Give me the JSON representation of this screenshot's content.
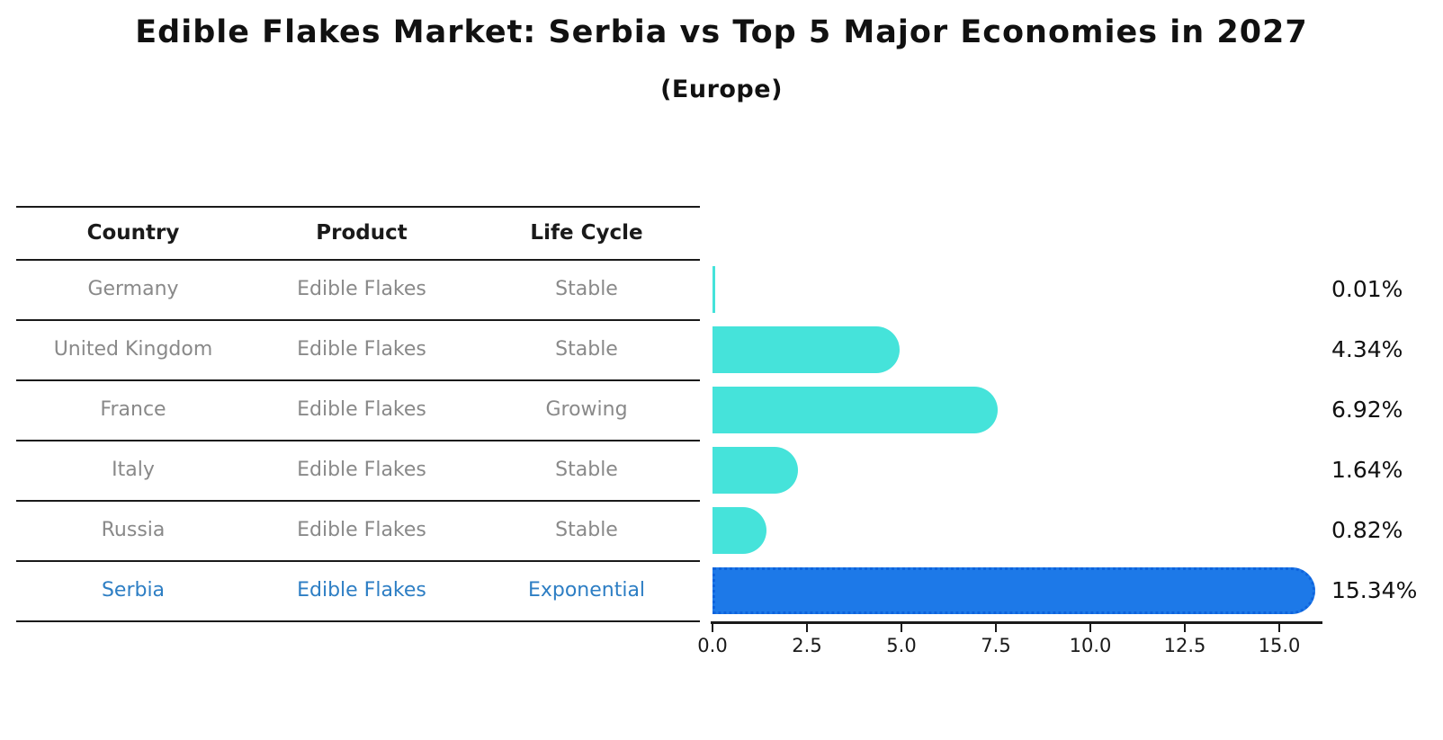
{
  "title": "Edible Flakes Market: Serbia vs Top 5 Major Economies in 2027",
  "subtitle": "(Europe)",
  "table": {
    "headers": [
      "Country",
      "Product",
      "Life Cycle"
    ],
    "rows": [
      {
        "country": "Germany",
        "product": "Edible Flakes",
        "life_cycle": "Stable",
        "value_label": "0.01%"
      },
      {
        "country": "United Kingdom",
        "product": "Edible Flakes",
        "life_cycle": "Stable",
        "value_label": "4.34%"
      },
      {
        "country": "France",
        "product": "Edible Flakes",
        "life_cycle": "Growing",
        "value_label": "6.92%"
      },
      {
        "country": "Italy",
        "product": "Edible Flakes",
        "life_cycle": "Stable",
        "value_label": "1.64%"
      },
      {
        "country": "Russia",
        "product": "Edible Flakes",
        "life_cycle": "Stable",
        "value_label": "0.82%"
      },
      {
        "country": "Serbia",
        "product": "Edible Flakes",
        "life_cycle": "Exponential",
        "value_label": "15.34%"
      }
    ]
  },
  "chart_data": {
    "type": "bar",
    "orientation": "horizontal",
    "title": "Edible Flakes Market: Serbia vs Top 5 Major Economies in 2027",
    "subtitle": "(Europe)",
    "categories": [
      "Germany",
      "United Kingdom",
      "France",
      "Italy",
      "Russia",
      "Serbia"
    ],
    "values": [
      0.01,
      4.34,
      6.92,
      1.64,
      0.82,
      15.34
    ],
    "value_labels": [
      "0.01%",
      "4.34%",
      "6.92%",
      "1.64%",
      "0.82%",
      "15.34%"
    ],
    "highlighted_category": "Serbia",
    "xlabel": "",
    "ylabel": "",
    "xlim": [
      0,
      16.2
    ],
    "xticks": [
      0.0,
      2.5,
      5.0,
      7.5,
      10.0,
      12.5,
      15.0
    ],
    "xtick_labels": [
      "0.0",
      "2.5",
      "5.0",
      "7.5",
      "10.0",
      "12.5",
      "15.0"
    ],
    "grid": false,
    "legend": false,
    "colors": {
      "bar_default": "#45e3da",
      "bar_highlight": "#1d79e8",
      "bar_highlight_border": "#0e63dd",
      "highlight_text": "#2d7ec4",
      "table_text": "#898989",
      "header_text": "#1a1a1a"
    }
  }
}
